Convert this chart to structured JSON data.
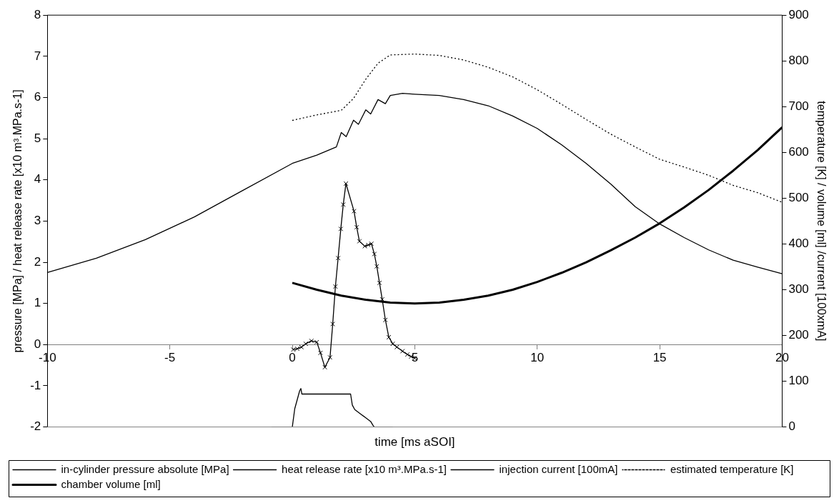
{
  "chart_data": {
    "type": "line",
    "xlabel": "time [ms aSOI]",
    "ylabel": "pressure [MPa] / heat release rate [x10 m³.MPa.s-1]",
    "y2label": "temperature [K] / volume [ml] /current [100xmA]",
    "xlim": [
      -10,
      20
    ],
    "xticks": [
      -10,
      -5,
      0,
      5,
      10,
      15,
      20
    ],
    "ylim": [
      -2,
      8
    ],
    "yticks": [
      -2,
      -1,
      0,
      1,
      2,
      3,
      4,
      5,
      6,
      7,
      8
    ],
    "y2lim": [
      0,
      900
    ],
    "y2ticks": [
      0,
      100,
      200,
      300,
      400,
      500,
      600,
      700,
      800,
      900
    ],
    "grid": false,
    "legend": "bottom",
    "marker": "none",
    "line_style": "solid",
    "series": [
      {
        "name": "in-cylinder pressure absolute [MPa]",
        "color": "#000000",
        "x": [
          -10,
          -8,
          -6,
          -4,
          -2,
          0,
          1,
          1.8,
          2,
          2.2,
          2.5,
          2.7,
          3,
          3.2,
          3.5,
          3.8,
          4,
          4.5,
          5,
          6,
          7,
          8,
          9,
          10,
          11,
          12,
          13,
          14,
          15,
          16,
          17,
          18,
          19,
          20
        ],
        "values": [
          1.75,
          2.1,
          2.55,
          3.1,
          3.75,
          4.4,
          4.6,
          4.8,
          5.15,
          5.05,
          5.45,
          5.35,
          5.7,
          5.6,
          5.95,
          5.85,
          6.05,
          6.1,
          6.08,
          6.05,
          5.95,
          5.8,
          5.55,
          5.25,
          4.85,
          4.4,
          3.9,
          3.35,
          2.93,
          2.6,
          2.3,
          2.05,
          1.88,
          1.72
        ]
      },
      {
        "name": "heat release rate [x10 m³.MPa.s-1]",
        "color": "#000000",
        "marker": "cross",
        "x": [
          0.04,
          0.2,
          0.37,
          0.55,
          0.78,
          1.0,
          1.15,
          1.33,
          1.54,
          1.65,
          1.76,
          1.87,
          1.98,
          2.08,
          2.19,
          2.52,
          2.63,
          2.74,
          2.96,
          3.1,
          3.23,
          3.35,
          3.45,
          3.56,
          3.67,
          3.8,
          3.94,
          4.1,
          4.27,
          4.5,
          4.7,
          4.85,
          5.0
        ],
        "values": [
          -0.12,
          -0.1,
          -0.06,
          0.02,
          0.09,
          0.06,
          -0.2,
          -0.55,
          -0.31,
          0.5,
          1.41,
          2.1,
          2.81,
          3.4,
          3.91,
          3.24,
          2.85,
          2.51,
          2.39,
          2.42,
          2.45,
          2.2,
          1.9,
          1.5,
          1.1,
          0.6,
          0.18,
          0.02,
          -0.06,
          -0.16,
          -0.24,
          -0.29,
          -0.33
        ]
      },
      {
        "name": "injection current [100mA]",
        "color": "#000000",
        "axis": "y2",
        "x": [
          -0.85,
          0,
          0.1,
          0.3,
          0.35,
          0.39,
          2.38,
          2.45,
          2.55,
          2.8,
          3.0,
          3.2,
          3.3,
          3.35,
          4.1
        ],
        "values": [
          0,
          0,
          40,
          79,
          84,
          72,
          72,
          48,
          38,
          28,
          20,
          12,
          3,
          0,
          0
        ]
      },
      {
        "name": "estimated temperature [K]",
        "color": "#000000",
        "axis": "y2",
        "line_style": "dotted",
        "x": [
          0,
          1,
          2,
          2.5,
          3,
          3.5,
          4,
          5,
          6,
          7,
          8,
          9,
          10,
          11,
          12,
          13,
          14,
          15,
          16,
          17,
          18,
          19,
          20
        ],
        "values": [
          670,
          682,
          692,
          718,
          760,
          795,
          813,
          815,
          812,
          802,
          786,
          765,
          737,
          705,
          672,
          640,
          612,
          585,
          568,
          550,
          528,
          512,
          491
        ]
      },
      {
        "name": "chamber volume [ml]",
        "color": "#000000",
        "axis": "y2",
        "x": [
          0,
          1,
          2,
          3,
          4,
          5,
          6,
          7,
          8,
          9,
          10,
          11,
          12,
          13,
          14,
          15,
          16,
          17,
          18,
          19,
          20
        ],
        "values": [
          315,
          300,
          287,
          278,
          272,
          270,
          272,
          278,
          287,
          300,
          317,
          337,
          360,
          386,
          414,
          445,
          480,
          518,
          560,
          605,
          655
        ]
      }
    ]
  }
}
